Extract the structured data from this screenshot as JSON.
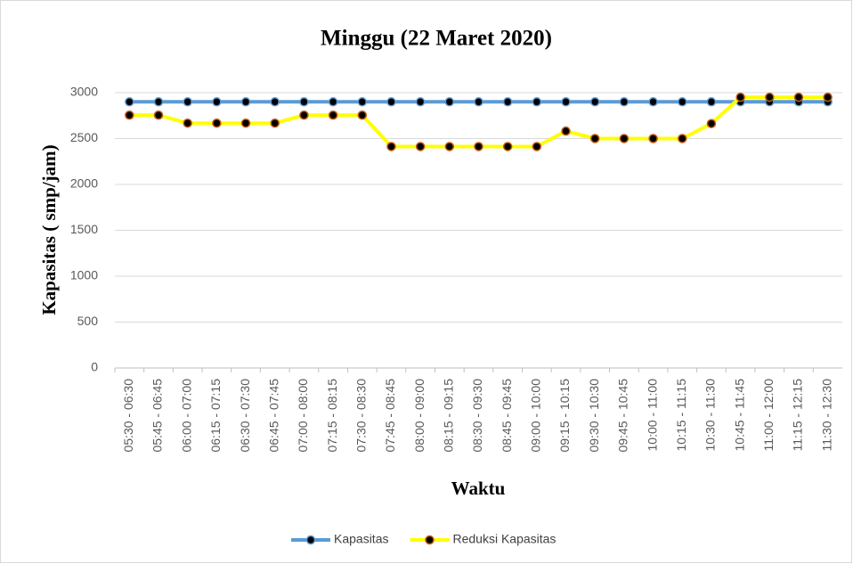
{
  "chart_data": {
    "type": "line",
    "title": "Minggu (22 Maret 2020)",
    "x_label": "Waktu",
    "y_label": "Kapasitas ( smp/jam)",
    "categories": [
      "05:30 - 06:30",
      "05:45 - 06:45",
      "06:00 - 07:00",
      "06:15 - 07:15",
      "06:30 - 07:30",
      "06:45 - 07:45",
      "07:00 - 08:00",
      "07:15 - 08:15",
      "07:30 - 08:30",
      "07:45 - 08:45",
      "08:00 - 09:00",
      "08:15 - 09:15",
      "08:30 - 09:30",
      "08:45 - 09:45",
      "09:00 - 10:00",
      "09:15 - 10:15",
      "09:30 - 10:30",
      "09:45 - 10:45",
      "10:00 - 11:00",
      "10:15 - 11:15",
      "10:30 - 11:30",
      "10:45 - 11:45",
      "11:00 - 12:00",
      "11:15 - 12:15",
      "11:30 - 12:30"
    ],
    "series": [
      {
        "name": "Kapasitas",
        "color": "#5b9bd5",
        "marker_color": "#000000",
        "values": [
          2900,
          2900,
          2900,
          2900,
          2900,
          2900,
          2900,
          2900,
          2900,
          2900,
          2900,
          2900,
          2900,
          2900,
          2900,
          2900,
          2900,
          2900,
          2900,
          2900,
          2900,
          2900,
          2900,
          2900,
          2900
        ]
      },
      {
        "name": "Reduksi Kapasitas",
        "color": "#ffff00",
        "marker_color": "#000000",
        "marker_edge": "#c55a11",
        "values": [
          2755,
          2755,
          2668,
          2668,
          2668,
          2668,
          2755,
          2755,
          2755,
          2413,
          2413,
          2413,
          2413,
          2413,
          2413,
          2581,
          2500,
          2500,
          2500,
          2500,
          2663,
          2950,
          2950,
          2950,
          2950
        ]
      }
    ],
    "ylim": [
      0,
      3000
    ],
    "yticks": [
      0,
      500,
      1000,
      1500,
      2000,
      2500,
      3000
    ],
    "grid": true,
    "legend": "bottom"
  }
}
